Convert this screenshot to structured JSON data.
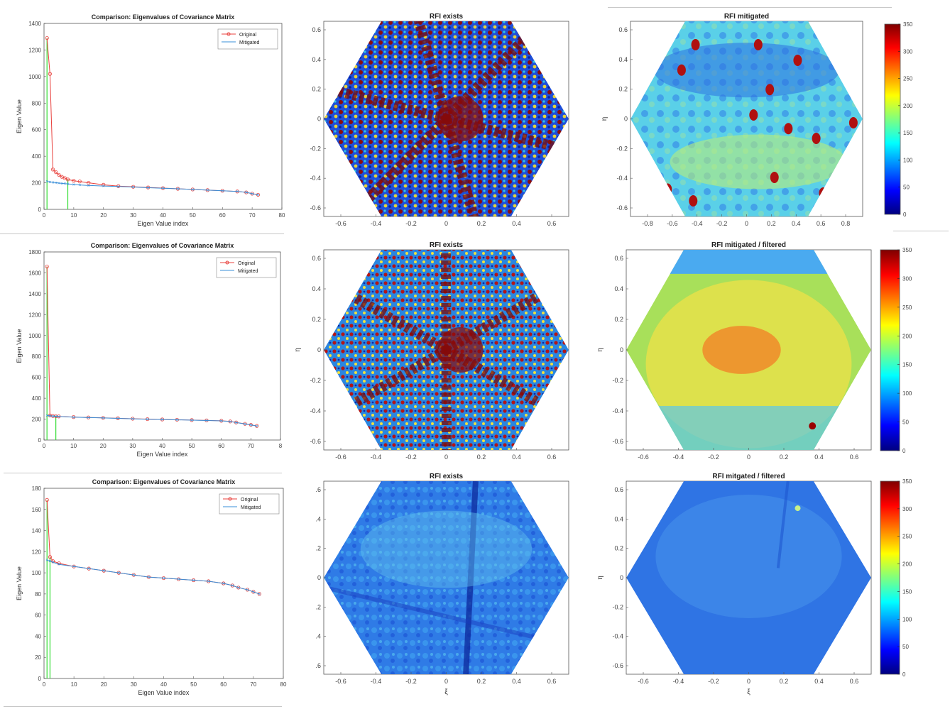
{
  "colors": {
    "original": "#e8403c",
    "mitigated": "#3a8fd8",
    "threshold": "#33dd33",
    "axis": "#555555"
  },
  "colorbar": {
    "ticks": [
      0,
      50,
      100,
      150,
      200,
      250,
      300,
      350
    ],
    "colormap": "jet"
  },
  "rows": [
    {
      "eigen": {
        "title": "Comparison: Eigenvalues of Covariance Matrix",
        "xlabel": "Eigen Value index",
        "ylabel": "Eigen Value",
        "legend": [
          "Original",
          "Mitigated"
        ],
        "yticks": [
          "0",
          "200",
          "400",
          "600",
          "800",
          "1000",
          "1200",
          "1400"
        ],
        "xticks": [
          "0",
          "10",
          "20",
          "30",
          "40",
          "50",
          "60",
          "70",
          "80"
        ]
      },
      "left_map": {
        "title": "RFI exists",
        "yticks": [
          "-0.6",
          "-0.4",
          "-0.2",
          "0",
          "0.2",
          "0.4",
          "0.6"
        ],
        "xticks": [
          "-0.6",
          "-0.4",
          "-0.2",
          "0",
          "0.2",
          "0.4",
          "0.6"
        ]
      },
      "right_map": {
        "title": "RFI mitigated",
        "ylabel": "η",
        "yticks": [
          "-0.6",
          "-0.4",
          "-0.2",
          "0",
          "0.2",
          "0.4",
          "0.6"
        ],
        "xticks": [
          "-0.8",
          "-0.6",
          "-0.4",
          "-0.2",
          "0",
          "0.2",
          "0.4",
          "0.6",
          "0.8"
        ]
      }
    },
    {
      "eigen": {
        "title": "Comparison: Eigenvalues of Covariance Matrix",
        "xlabel": "Eigen Value index",
        "ylabel": "Eigen Value",
        "legend": [
          "Original",
          "Mitigated"
        ],
        "yticks": [
          "0",
          "200",
          "400",
          "600",
          "800",
          "1000",
          "1200",
          "1400",
          "1600",
          "1800"
        ],
        "xticks": [
          "0",
          "10",
          "20",
          "30",
          "40",
          "50",
          "60",
          "70",
          "8"
        ]
      },
      "left_map": {
        "title": "RFI exists",
        "ylabel": "η",
        "yticks": [
          "-0.6",
          "-0.4",
          "-0.2",
          "0",
          "0.2",
          "0.4",
          "0.6"
        ],
        "xticks": [
          "-0.6",
          "-0.4",
          "-0.2",
          "0",
          "0.2",
          "0.4",
          "0.6"
        ]
      },
      "right_map": {
        "title": "RFI mitigated / filtered",
        "ylabel": "η",
        "yticks": [
          "-0.6",
          "-0.4",
          "-0.2",
          "0",
          "0.2",
          "0.4",
          "0.6"
        ],
        "xticks": [
          "-0.6",
          "-0.4",
          "-0.2",
          "0",
          "0.2",
          "0.4",
          "0.6"
        ]
      }
    },
    {
      "eigen": {
        "title": "Comparison: Eigenvalues of Covariance Matrix",
        "xlabel": "Eigen Value index",
        "ylabel": "Eigen Value",
        "legend": [
          "Original",
          "Mitigated"
        ],
        "yticks": [
          "0",
          "20",
          "40",
          "60",
          "80",
          "100",
          "120",
          "140",
          "160",
          "180"
        ],
        "xticks": [
          "0",
          "10",
          "20",
          "30",
          "40",
          "50",
          "60",
          "70",
          "80"
        ]
      },
      "left_map": {
        "title": "RFI exists",
        "xlabel": "ξ",
        "yticks": [
          ".6",
          ".4",
          ".2",
          "0",
          ".2",
          ".4",
          ".6"
        ],
        "xticks": [
          "-0.6",
          "-0.4",
          "-0.2",
          "0",
          "0.2",
          "0.4",
          "0.6"
        ]
      },
      "right_map": {
        "title": "RFI mitgated / filtered",
        "xlabel": "ξ",
        "ylabel": "η",
        "yticks": [
          "-0.6",
          "-0.4",
          "-0.2",
          "0",
          "0.2",
          "0.4",
          "0.6"
        ],
        "xticks": [
          "-0.6",
          "-0.4",
          "-0.2",
          "0",
          "0.2",
          "0.4",
          "0.6"
        ]
      }
    }
  ],
  "chart_data": [
    {
      "type": "line",
      "title": "Comparison: Eigenvalues of Covariance Matrix",
      "xlabel": "Eigen Value index",
      "ylabel": "Eigen Value",
      "xlim": [
        0,
        80
      ],
      "ylim": [
        0,
        1400
      ],
      "x": [
        1,
        2,
        3,
        4,
        5,
        6,
        7,
        8,
        10,
        12,
        15,
        20,
        25,
        30,
        35,
        40,
        45,
        50,
        55,
        60,
        65,
        68,
        70,
        72
      ],
      "series": [
        {
          "name": "Original",
          "values": [
            1290,
            1020,
            300,
            280,
            260,
            245,
            235,
            225,
            215,
            210,
            200,
            185,
            175,
            170,
            165,
            160,
            155,
            150,
            145,
            140,
            135,
            128,
            118,
            110
          ]
        },
        {
          "name": "Mitigated",
          "values": [
            210,
            207,
            204,
            201,
            198,
            196,
            194,
            192,
            188,
            184,
            180,
            176,
            172,
            168,
            163,
            159,
            155,
            150,
            145,
            140,
            135,
            128,
            118,
            110
          ]
        }
      ],
      "markers": [
        1,
        8
      ]
    },
    {
      "type": "line",
      "title": "Comparison: Eigenvalues of Covariance Matrix",
      "xlabel": "Eigen Value index",
      "ylabel": "Eigen Value",
      "xlim": [
        0,
        80
      ],
      "ylim": [
        0,
        1800
      ],
      "x": [
        1,
        2,
        3,
        4,
        5,
        10,
        15,
        20,
        25,
        30,
        35,
        40,
        45,
        50,
        55,
        60,
        63,
        65,
        68,
        70,
        72
      ],
      "series": [
        {
          "name": "Original",
          "values": [
            1660,
            235,
            230,
            228,
            226,
            220,
            216,
            212,
            208,
            204,
            200,
            197,
            194,
            191,
            188,
            184,
            178,
            168,
            155,
            145,
            135
          ]
        },
        {
          "name": "Mitigated",
          "values": [
            235,
            232,
            229,
            227,
            225,
            219,
            215,
            211,
            207,
            203,
            199,
            196,
            193,
            190,
            187,
            183,
            177,
            167,
            154,
            144,
            134
          ]
        }
      ],
      "markers": [
        1,
        4
      ]
    },
    {
      "type": "line",
      "title": "Comparison: Eigenvalues of Covariance Matrix",
      "xlabel": "Eigen Value index",
      "ylabel": "Eigen Value",
      "xlim": [
        0,
        80
      ],
      "ylim": [
        0,
        180
      ],
      "x": [
        1,
        2,
        3,
        5,
        10,
        15,
        20,
        25,
        30,
        35,
        40,
        45,
        50,
        55,
        60,
        63,
        65,
        68,
        70,
        72
      ],
      "series": [
        {
          "name": "Original",
          "values": [
            169,
            115,
            111,
            109,
            106,
            104,
            102,
            100,
            98,
            96,
            95,
            94,
            93,
            92,
            90,
            88,
            86,
            84,
            82,
            80
          ]
        },
        {
          "name": "Mitigated",
          "values": [
            112,
            111,
            110,
            108,
            106,
            104,
            102,
            100,
            98,
            96,
            95,
            94,
            93,
            92,
            90,
            88,
            86,
            84,
            82,
            80
          ]
        }
      ],
      "markers": [
        1,
        2
      ]
    }
  ]
}
